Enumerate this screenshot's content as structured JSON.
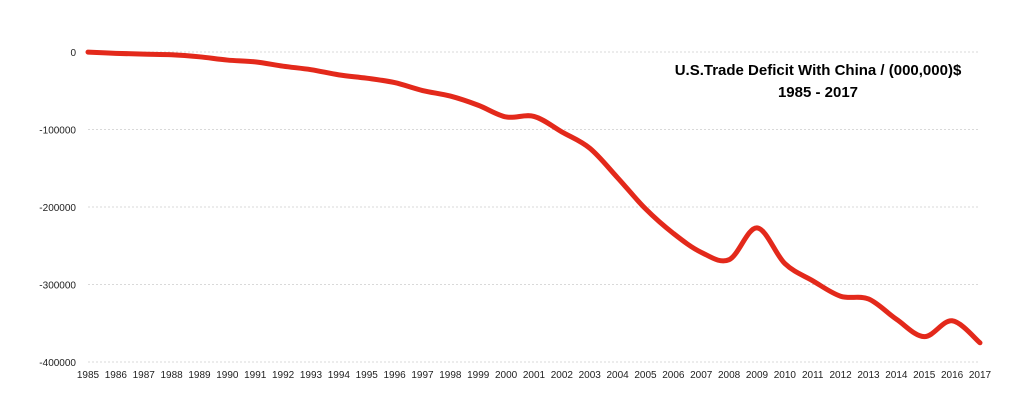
{
  "chart_data": {
    "type": "line",
    "title": "U.S.Trade Deficit With China / (000,000)$",
    "subtitle": "1985 - 2017",
    "xlabel": "",
    "ylabel": "",
    "categories": [
      "1985",
      "1986",
      "1987",
      "1988",
      "1989",
      "1990",
      "1991",
      "1992",
      "1993",
      "1994",
      "1995",
      "1996",
      "1997",
      "1998",
      "1999",
      "2000",
      "2001",
      "2002",
      "2003",
      "2004",
      "2005",
      "2006",
      "2007",
      "2008",
      "2009",
      "2010",
      "2011",
      "2012",
      "2013",
      "2014",
      "2015",
      "2016",
      "2017"
    ],
    "yticks": [
      "0",
      "-100000",
      "-200000",
      "-300000",
      "-400000"
    ],
    "ylim": [
      -400000,
      0
    ],
    "grid": true,
    "legend": "none",
    "series": [
      {
        "color": "#e3291b",
        "values": [
          -100,
          -1700,
          -2800,
          -3500,
          -6200,
          -10400,
          -12700,
          -18300,
          -22800,
          -29500,
          -33800,
          -39500,
          -49700,
          -56900,
          -68700,
          -83800,
          -83100,
          -103100,
          -124100,
          -162300,
          -202300,
          -234100,
          -258500,
          -268000,
          -226900,
          -273000,
          -295200,
          -315100,
          -318700,
          -344800,
          -367300,
          -346800,
          -375200
        ]
      }
    ]
  }
}
